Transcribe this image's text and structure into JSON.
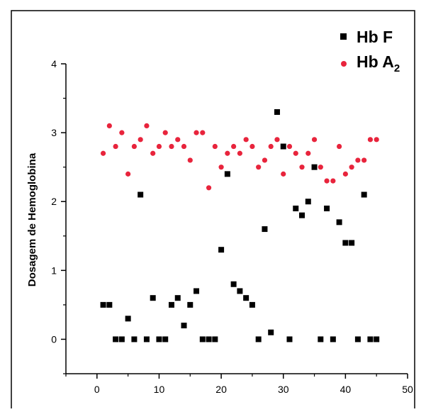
{
  "chart_data": {
    "type": "scatter",
    "xlabel": "",
    "ylabel": "Dosagem de Hemoglobina",
    "xlim": [
      -5,
      50
    ],
    "ylim": [
      -0.5,
      4
    ],
    "xticks": [
      0,
      10,
      20,
      30,
      40,
      50
    ],
    "yticks": [
      0,
      1,
      2,
      3,
      4
    ],
    "xtick_labels": [
      "0",
      "10",
      "20",
      "30",
      "40",
      "50"
    ],
    "ytick_labels": [
      "0",
      "1",
      "2",
      "3",
      "4"
    ],
    "grid": false,
    "legend_position": "top-right",
    "series": [
      {
        "name": "Hb F",
        "name_main": "Hb F",
        "name_sub": "",
        "marker": "square",
        "color": "#000000",
        "x": [
          1,
          2,
          3,
          4,
          5,
          6,
          7,
          8,
          9,
          10,
          11,
          12,
          13,
          14,
          15,
          16,
          17,
          18,
          19,
          20,
          21,
          22,
          23,
          24,
          25,
          26,
          27,
          28,
          29,
          30,
          31,
          32,
          33,
          34,
          35,
          36,
          37,
          38,
          39,
          40,
          41,
          42,
          43,
          44,
          45
        ],
        "y": [
          0.5,
          0.5,
          0,
          0,
          0.3,
          0,
          2.1,
          0,
          0.6,
          0,
          0,
          0.5,
          0.6,
          0.2,
          0.5,
          0.7,
          0,
          0,
          0,
          1.3,
          2.4,
          0.8,
          0.7,
          0.6,
          0.5,
          0,
          1.6,
          0.1,
          3.3,
          2.8,
          0,
          1.9,
          1.8,
          2.0,
          2.5,
          0,
          1.9,
          0,
          1.7,
          1.4,
          1.4,
          0,
          2.1,
          0,
          0
        ]
      },
      {
        "name": "Hb A2",
        "name_main": "Hb A",
        "name_sub": "2",
        "marker": "circle",
        "color": "#e8243c",
        "x": [
          1,
          2,
          3,
          4,
          5,
          6,
          7,
          8,
          9,
          10,
          11,
          12,
          13,
          14,
          15,
          16,
          17,
          18,
          19,
          20,
          21,
          22,
          23,
          24,
          25,
          26,
          27,
          28,
          29,
          30,
          31,
          32,
          33,
          34,
          35,
          36,
          37,
          38,
          39,
          40,
          41,
          42,
          43,
          44,
          45
        ],
        "y": [
          2.7,
          3.1,
          2.8,
          3.0,
          2.4,
          2.8,
          2.9,
          3.1,
          2.7,
          2.8,
          3.0,
          2.8,
          2.9,
          2.8,
          2.6,
          3.0,
          3.0,
          2.2,
          2.8,
          2.5,
          2.7,
          2.8,
          2.7,
          2.9,
          2.8,
          2.5,
          2.6,
          2.8,
          2.9,
          2.4,
          2.8,
          2.7,
          2.5,
          2.7,
          2.9,
          2.5,
          2.3,
          2.3,
          2.8,
          2.4,
          2.5,
          2.6,
          2.6,
          2.9,
          2.9
        ]
      }
    ]
  }
}
